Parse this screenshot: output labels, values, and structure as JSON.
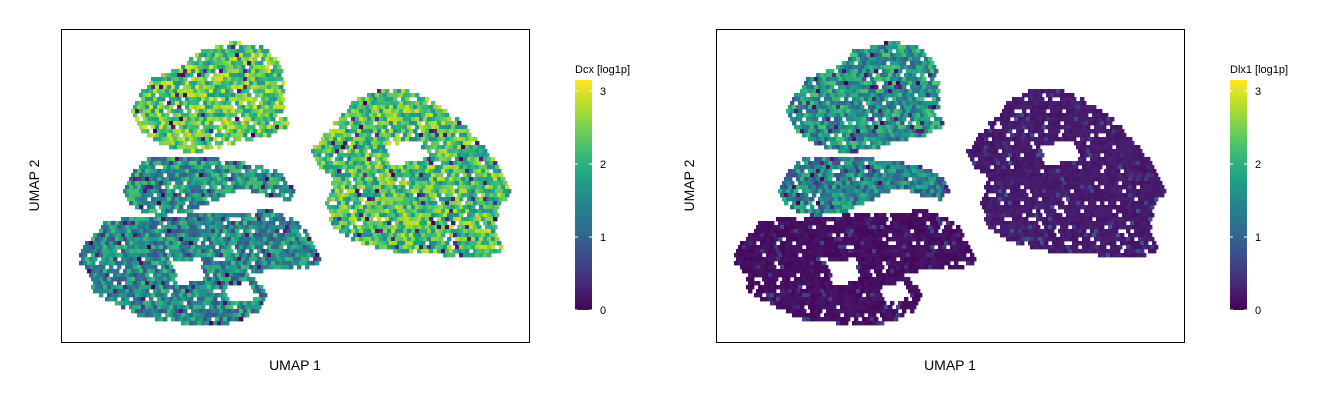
{
  "chart_data": [
    {
      "type": "scatter",
      "subtype": "hexbin",
      "title": "",
      "xlabel": "UMAP 1",
      "ylabel": "UMAP 2",
      "gene": "Dcx",
      "legend_title": "Dcx [log1p]",
      "legend_placement": "right",
      "colormap": "viridis",
      "color_range": [
        0,
        3.15
      ],
      "color_ticks": [
        0,
        1,
        2,
        3
      ],
      "axis_ticks": false,
      "grid": false,
      "clusters": [
        {
          "name": "top-left upper",
          "mean_expression": 2.3
        },
        {
          "name": "middle-left",
          "mean_expression": 1.6
        },
        {
          "name": "bottom-left",
          "mean_expression": 1.5
        },
        {
          "name": "right",
          "mean_expression": 2.2
        }
      ]
    },
    {
      "type": "scatter",
      "subtype": "hexbin",
      "title": "",
      "xlabel": "UMAP 1",
      "ylabel": "UMAP 2",
      "gene": "Dlx1",
      "legend_title": "Dlx1 [log1p]",
      "legend_placement": "right",
      "colormap": "viridis",
      "color_range": [
        0,
        3.15
      ],
      "color_ticks": [
        0,
        1,
        2,
        3
      ],
      "axis_ticks": false,
      "grid": false,
      "clusters": [
        {
          "name": "top-left upper",
          "mean_expression": 1.6
        },
        {
          "name": "middle-left",
          "mean_expression": 1.4
        },
        {
          "name": "bottom-left",
          "mean_expression": 0.05
        },
        {
          "name": "right",
          "mean_expression": 0.15
        }
      ]
    }
  ],
  "colors": {
    "viridis": [
      "#440154",
      "#482878",
      "#3e4989",
      "#31688e",
      "#26828e",
      "#1f9e89",
      "#35b779",
      "#6ece58",
      "#b5de2b",
      "#fde725"
    ],
    "frame": "#000000"
  }
}
